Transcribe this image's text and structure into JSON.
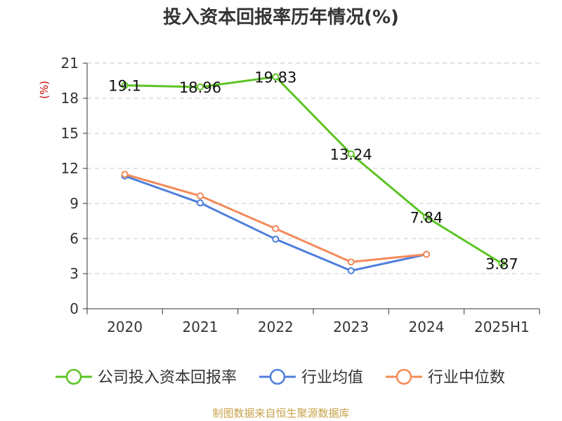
{
  "chart_data": {
    "type": "line",
    "title": "投入资本回报率历年情况(%)",
    "ylabel": "(%)",
    "xlabel": "",
    "categories": [
      "2020",
      "2021",
      "2022",
      "2023",
      "2024",
      "2025H1"
    ],
    "ylim": [
      0,
      21
    ],
    "yticks": [
      0,
      3,
      6,
      9,
      12,
      15,
      18,
      21
    ],
    "grid": true,
    "legend_position": "bottom",
    "series": [
      {
        "name": "公司投入资本回报率",
        "color": "#5cc424",
        "values": [
          19.1,
          18.96,
          19.83,
          13.24,
          7.84,
          3.87
        ],
        "labels": [
          "19.1",
          "18.96",
          "19.83",
          "13.24",
          "7.84",
          "3.87"
        ]
      },
      {
        "name": "行业均值",
        "color": "#4f7fdc",
        "values": [
          11.35,
          9.05,
          5.95,
          3.25,
          4.65,
          null
        ]
      },
      {
        "name": "行业中位数",
        "color": "#f38a5a",
        "values": [
          11.5,
          9.65,
          6.85,
          4.0,
          4.65,
          null
        ]
      }
    ]
  },
  "source_note": "制图数据来自恒生聚源数据库"
}
